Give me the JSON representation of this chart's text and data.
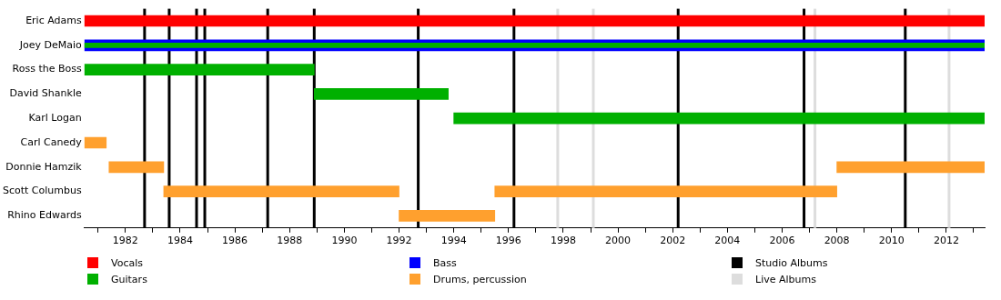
{
  "chart_data": {
    "type": "bar",
    "orientation": "horizontal",
    "categories": [
      "Eric Adams",
      "Joey DeMaio",
      "Ross the Boss",
      "David Shankle",
      "Karl Logan",
      "Carl Canedy",
      "Donnie Hamzik",
      "Scott Columbus",
      "Rhino Edwards"
    ],
    "series": [
      {
        "name": "Vocals",
        "color": "#ff0000",
        "values": [
          32.9,
          null,
          null,
          null,
          null,
          null,
          null,
          null,
          null
        ],
        "base": [
          1980.5,
          null,
          null,
          null,
          null,
          null,
          null,
          null,
          null
        ]
      },
      {
        "name": "Guitars",
        "color": "#00b000",
        "values": [
          null,
          null,
          8.4,
          4.9,
          19.4,
          null,
          null,
          null,
          null
        ],
        "base": [
          null,
          null,
          1980.5,
          1988.9,
          1994.0,
          null,
          null,
          null,
          null
        ]
      },
      {
        "name": "Bass",
        "color": "#0000ff",
        "values": [
          null,
          32.9,
          null,
          null,
          null,
          null,
          null,
          null,
          null
        ],
        "base": [
          null,
          1980.5,
          null,
          null,
          null,
          null,
          null,
          null,
          null
        ]
      },
      {
        "color": "#00b000",
        "values": [
          null,
          32.9,
          null,
          null,
          null,
          null,
          null,
          null,
          null
        ],
        "base": [
          null,
          1980.5,
          null,
          null,
          null,
          null,
          null,
          null,
          null
        ]
      },
      {
        "name": "Drums, percussion",
        "color": "#ffa02e",
        "values": [
          null,
          null,
          null,
          null,
          null,
          0.8,
          2.0,
          8.6,
          3.5
        ],
        "base": [
          null,
          null,
          null,
          null,
          null,
          1980.5,
          1981.4,
          1983.4,
          1992.0
        ]
      },
      {
        "color": "#ffa02e",
        "values": [
          null,
          null,
          null,
          null,
          null,
          null,
          5.4,
          12.5,
          null
        ],
        "base": [
          null,
          null,
          null,
          null,
          null,
          null,
          2008.0,
          1995.5,
          null
        ]
      }
    ],
    "xlim": [
      1980.5,
      2013.4
    ],
    "xticks": [
      {
        "value": 1981,
        "label": null
      },
      1982,
      {
        "value": 1983,
        "label": null
      },
      1984,
      {
        "value": 1985,
        "label": null
      },
      1986,
      {
        "value": 1987,
        "label": null
      },
      1988,
      {
        "value": 1989,
        "label": null
      },
      1990,
      {
        "value": 1991,
        "label": null
      },
      1992,
      {
        "value": 1993,
        "label": null
      },
      1994,
      {
        "value": 1995,
        "label": null
      },
      1996,
      {
        "value": 1997,
        "label": null
      },
      1998,
      {
        "value": 1999,
        "label": null
      },
      2000,
      {
        "value": 2001,
        "label": null
      },
      2002,
      {
        "value": 2003,
        "label": null
      },
      2004,
      {
        "value": 2005,
        "label": null
      },
      2006,
      {
        "value": 2007,
        "label": null
      },
      2008,
      {
        "value": 2009,
        "label": null
      },
      2010,
      {
        "value": 2011,
        "label": null
      },
      2012,
      {
        "value": 2013,
        "label": null
      }
    ],
    "ref_lines": [
      {
        "axis": "x",
        "value": 1982.7,
        "label": "Studio Albums",
        "color": "#000000"
      },
      {
        "axis": "x",
        "value": 1983.6,
        "color": "#000000"
      },
      {
        "axis": "x",
        "value": 1984.6,
        "color": "#000000"
      },
      {
        "axis": "x",
        "value": 1984.9,
        "color": "#000000"
      },
      {
        "axis": "x",
        "value": 1987.2,
        "color": "#000000"
      },
      {
        "axis": "x",
        "value": 1988.9,
        "color": "#000000"
      },
      {
        "axis": "x",
        "value": 1992.7,
        "color": "#000000"
      },
      {
        "axis": "x",
        "value": 1996.2,
        "color": "#000000"
      },
      {
        "axis": "x",
        "value": 2002.2,
        "color": "#000000"
      },
      {
        "axis": "x",
        "value": 2006.8,
        "color": "#000000"
      },
      {
        "axis": "x",
        "value": 2010.5,
        "color": "#000000"
      },
      {
        "axis": "x",
        "value": 1997.8,
        "label": "Live Albums",
        "color": "#dddddd"
      },
      {
        "axis": "x",
        "value": 1999.1,
        "color": "#dddddd"
      },
      {
        "axis": "x",
        "value": 2007.2,
        "color": "#dddddd"
      },
      {
        "axis": "x",
        "value": 2012.1,
        "color": "#dddddd"
      }
    ],
    "grid": false,
    "legend": "bottom"
  }
}
